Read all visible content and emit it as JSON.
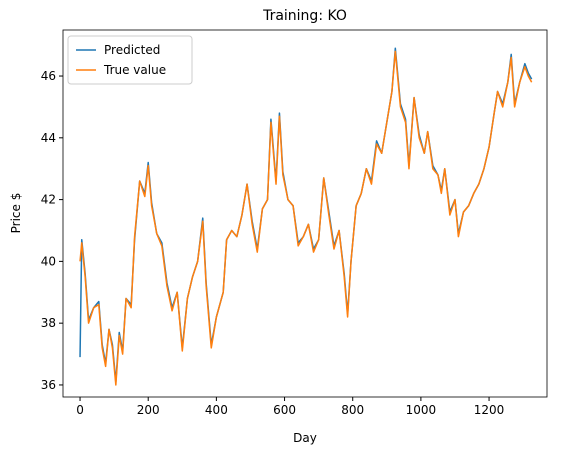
{
  "chart_data": {
    "type": "line",
    "title": "Training: KO",
    "xlabel": "Day",
    "ylabel": "Price $",
    "x": [
      0,
      5,
      15,
      25,
      40,
      55,
      65,
      75,
      85,
      95,
      105,
      115,
      125,
      135,
      150,
      160,
      175,
      190,
      200,
      210,
      225,
      240,
      255,
      270,
      285,
      300,
      315,
      330,
      345,
      360,
      370,
      385,
      400,
      420,
      430,
      445,
      460,
      475,
      490,
      505,
      520,
      535,
      550,
      560,
      575,
      585,
      595,
      610,
      625,
      640,
      655,
      670,
      685,
      700,
      715,
      730,
      745,
      760,
      775,
      785,
      795,
      810,
      825,
      840,
      855,
      870,
      885,
      900,
      915,
      925,
      940,
      955,
      965,
      980,
      995,
      1010,
      1020,
      1035,
      1050,
      1060,
      1070,
      1085,
      1100,
      1110,
      1125,
      1140,
      1155,
      1170,
      1185,
      1200,
      1215,
      1225,
      1240,
      1255,
      1265,
      1275,
      1290,
      1305,
      1315,
      1325
    ],
    "series": [
      {
        "name": "Predicted",
        "color": "#1f77b4",
        "values": [
          36.9,
          40.7,
          39.6,
          38.1,
          38.5,
          38.7,
          37.3,
          36.7,
          37.8,
          37.3,
          36.1,
          37.7,
          37.1,
          38.8,
          38.6,
          40.7,
          42.6,
          42.2,
          43.2,
          41.9,
          40.9,
          40.6,
          39.3,
          38.5,
          39.0,
          37.2,
          38.8,
          39.5,
          40.0,
          41.4,
          39.3,
          37.3,
          38.2,
          39.0,
          40.7,
          41.0,
          40.8,
          41.5,
          42.5,
          41.3,
          40.4,
          41.7,
          42.0,
          44.6,
          42.6,
          44.8,
          42.9,
          42.0,
          41.8,
          40.6,
          40.8,
          41.2,
          40.4,
          40.7,
          42.7,
          41.6,
          40.5,
          41.0,
          39.6,
          38.3,
          40.0,
          41.8,
          42.2,
          43.0,
          42.6,
          43.9,
          43.5,
          44.5,
          45.5,
          46.9,
          45.1,
          44.6,
          43.1,
          45.3,
          44.1,
          43.5,
          44.2,
          43.1,
          42.8,
          42.3,
          43.0,
          41.6,
          42.0,
          40.9,
          41.6,
          41.8,
          42.2,
          42.5,
          43.0,
          43.7,
          44.8,
          45.5,
          45.1,
          45.8,
          46.7,
          45.1,
          45.8,
          46.4,
          46.1,
          45.9
        ]
      },
      {
        "name": "True value",
        "color": "#ff7f0e",
        "values": [
          40.0,
          40.6,
          39.5,
          38.0,
          38.5,
          38.6,
          37.2,
          36.6,
          37.8,
          37.2,
          36.0,
          37.6,
          37.0,
          38.8,
          38.5,
          40.8,
          42.6,
          42.1,
          43.1,
          41.8,
          40.9,
          40.5,
          39.2,
          38.4,
          39.0,
          37.1,
          38.8,
          39.5,
          40.0,
          41.3,
          39.2,
          37.2,
          38.2,
          39.0,
          40.7,
          41.0,
          40.8,
          41.5,
          42.5,
          41.2,
          40.3,
          41.7,
          42.0,
          44.5,
          42.5,
          44.7,
          42.8,
          42.0,
          41.8,
          40.5,
          40.8,
          41.2,
          40.3,
          40.7,
          42.7,
          41.5,
          40.4,
          41.0,
          39.5,
          38.2,
          40.0,
          41.8,
          42.2,
          43.0,
          42.5,
          43.8,
          43.5,
          44.5,
          45.5,
          46.8,
          45.0,
          44.5,
          43.0,
          45.3,
          44.0,
          43.5,
          44.2,
          43.0,
          42.8,
          42.2,
          43.0,
          41.5,
          42.0,
          40.8,
          41.6,
          41.8,
          42.2,
          42.5,
          43.0,
          43.7,
          44.8,
          45.5,
          45.0,
          45.8,
          46.6,
          45.0,
          45.8,
          46.3,
          46.0,
          45.8
        ]
      }
    ],
    "xlim": [
      -50,
      1370
    ],
    "ylim": [
      35.61,
      47.49
    ],
    "xticks": [
      0,
      200,
      400,
      600,
      800,
      1000,
      1200
    ],
    "yticks": [
      36,
      38,
      40,
      42,
      44,
      46
    ],
    "grid": false,
    "legend": "upper left"
  }
}
